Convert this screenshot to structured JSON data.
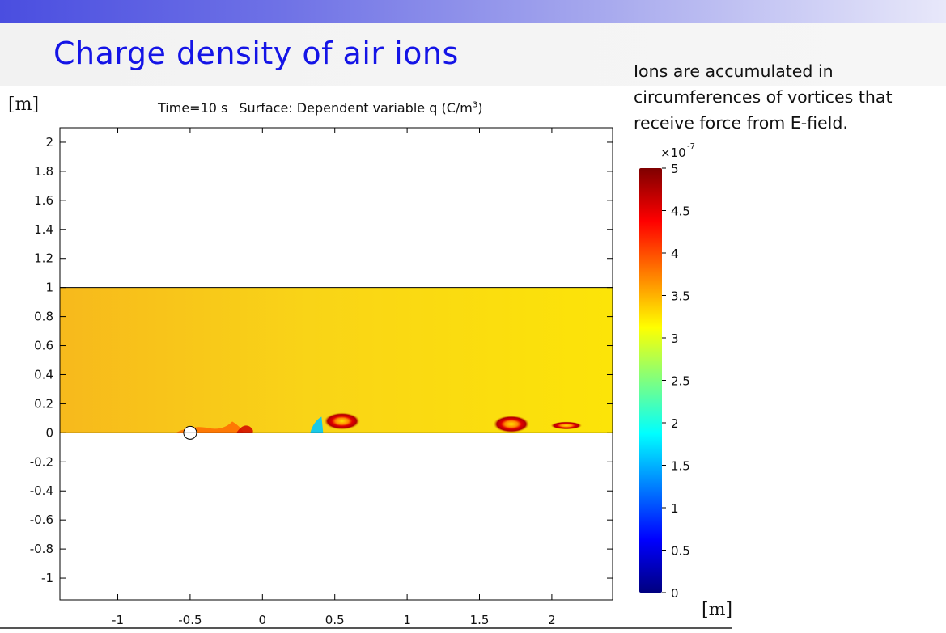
{
  "slide": {
    "title": "Charge density of air ions",
    "annotation_lines": [
      "Ions are accumulated in",
      "circumferences of vortices that",
      "receive force from E-field."
    ]
  },
  "chart_data": {
    "type": "heatmap",
    "title_time": "Time=10 s",
    "title_surface": "Surface: Dependent variable q (C/m",
    "title_exponent": "3",
    "title_close": ")",
    "xunit": "[m]",
    "yunit": "[m]",
    "xlim": [
      -1.4,
      2.42
    ],
    "ylim": [
      -1.15,
      2.1
    ],
    "xticks": [
      -1,
      -0.5,
      0,
      0.5,
      1,
      1.5,
      2
    ],
    "xtick_labels": [
      "-1",
      "-0.5",
      "0",
      "0.5",
      "1",
      "1.5",
      "2"
    ],
    "yticks": [
      2,
      1.8,
      1.6,
      1.4,
      1.2,
      1,
      0.8,
      0.6,
      0.4,
      0.2,
      0,
      -0.2,
      -0.4,
      -0.6,
      -0.8,
      -1
    ],
    "ytick_labels": [
      "2",
      "1.8",
      "1.6",
      "1.4",
      "1.2",
      "1",
      "0.8",
      "0.6",
      "0.4",
      "0.2",
      "0",
      "-0.2",
      "-0.4",
      "-0.6",
      "-0.8",
      "-1"
    ],
    "domain": {
      "x": [
        -1.4,
        2.42
      ],
      "y": [
        0,
        1
      ]
    },
    "background_value": 3.1,
    "vortices": [
      {
        "x": 0.55,
        "y": 0.08,
        "value": 4.8
      },
      {
        "x": 1.72,
        "y": 0.06,
        "value": 4.6
      },
      {
        "x": 2.1,
        "y": 0.05,
        "value": 4.3
      }
    ],
    "obstacle": {
      "x": -0.5,
      "y": 0.0
    },
    "colorbar": {
      "multiplier_base": "×10",
      "multiplier_exp": "-7",
      "min": 0,
      "max": 5,
      "ticks": [
        5,
        4.5,
        4,
        3.5,
        3,
        2.5,
        2,
        1.5,
        1,
        0.5,
        0
      ],
      "tick_labels": [
        "5",
        "4.5",
        "4",
        "3.5",
        "3",
        "2.5",
        "2",
        "1.5",
        "1",
        "0.5",
        "0"
      ],
      "colormap": [
        "#00007f",
        "#0000ff",
        "#007fff",
        "#00ffff",
        "#7fff7f",
        "#ffff00",
        "#ff7f00",
        "#ff0000",
        "#7f0000"
      ]
    }
  }
}
